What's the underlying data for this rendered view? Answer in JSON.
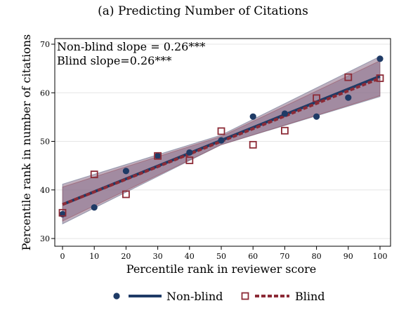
{
  "chart_data": {
    "type": "scatter",
    "title": "(a) Predicting Number of Citations",
    "xlabel": "Percentile rank in reviewer score",
    "ylabel": "Percentile rank in number of citations",
    "xlim": [
      0,
      100
    ],
    "ylim": [
      30,
      70
    ],
    "x_ticks": [
      "0",
      "10",
      "20",
      "30",
      "40",
      "50",
      "60",
      "70",
      "80",
      "90",
      "100"
    ],
    "y_ticks": [
      "30",
      "40",
      "50",
      "60",
      "70"
    ],
    "annotations": [
      "Non-blind slope = 0.26***",
      "Blind slope=0.26***"
    ],
    "legend": {
      "position": "bottom",
      "entries": [
        "Non-blind",
        "Blind"
      ]
    },
    "grid": true,
    "colors": {
      "nonblind": "#1f3b66",
      "blind": "#8c2a36",
      "ci_fill": "#8a6e88"
    },
    "series": [
      {
        "name": "Non-blind",
        "marker": "filled-circle",
        "x": [
          0,
          10,
          20,
          30,
          40,
          50,
          60,
          70,
          80,
          90,
          100
        ],
        "y": [
          35.0,
          36.4,
          43.9,
          47.0,
          47.7,
          50.2,
          55.1,
          55.7,
          55.1,
          59.0,
          67.0
        ],
        "fit": {
          "x": [
            0,
            100
          ],
          "y": [
            37.0,
            63.4
          ]
        },
        "ci": {
          "x": [
            0,
            50,
            100
          ],
          "lower": [
            33.0,
            49.3,
            59.2
          ],
          "upper": [
            41.2,
            51.3,
            67.5
          ]
        }
      },
      {
        "name": "Blind",
        "marker": "hollow-square",
        "x": [
          0,
          10,
          20,
          30,
          40,
          50,
          60,
          70,
          80,
          90,
          100
        ],
        "y": [
          35.3,
          43.2,
          39.1,
          47.0,
          46.1,
          52.1,
          49.3,
          52.2,
          58.9,
          63.2,
          63.0
        ],
        "fit": {
          "x": [
            0,
            100
          ],
          "y": [
            37.0,
            63.0
          ]
        },
        "ci": {
          "x": [
            0,
            50,
            100
          ],
          "lower": [
            33.6,
            49.3,
            59.4
          ],
          "upper": [
            40.6,
            51.0,
            66.6
          ]
        }
      }
    ]
  }
}
